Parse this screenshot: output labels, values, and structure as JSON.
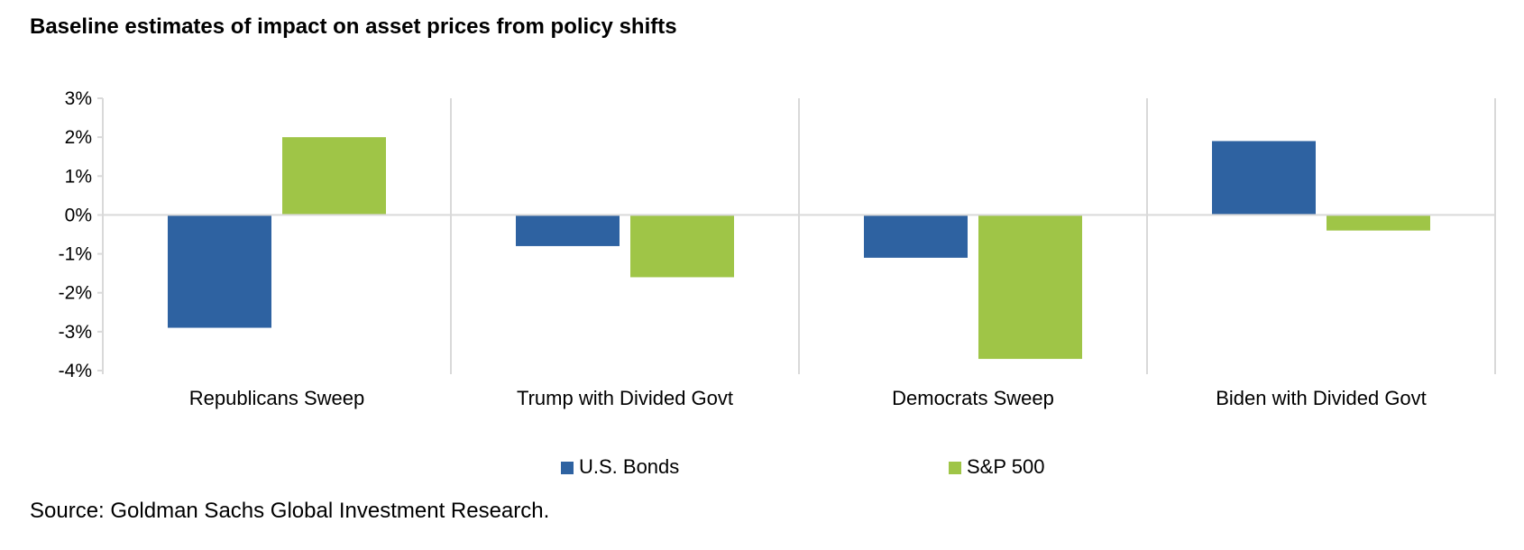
{
  "chart_data": {
    "type": "bar",
    "title": "Baseline estimates of impact on asset prices from policy shifts",
    "categories": [
      "Republicans Sweep",
      "Trump with Divided Govt",
      "Democrats Sweep",
      "Biden with Divided Govt"
    ],
    "series": [
      {
        "name": "U.S. Bonds",
        "color": "#2e62a1",
        "values": [
          -2.9,
          -0.8,
          -1.1,
          1.9
        ]
      },
      {
        "name": "S&P 500",
        "color": "#9fc547",
        "values": [
          2.0,
          -1.6,
          -3.7,
          -0.4
        ]
      }
    ],
    "ylim": [
      -4,
      3
    ],
    "yticks": [
      3,
      2,
      1,
      0,
      -1,
      -2,
      -3,
      -4
    ],
    "ytick_labels": [
      "3%",
      "2%",
      "1%",
      "0%",
      "-1%",
      "-2%",
      "-3%",
      "-4%"
    ],
    "xlabel": "",
    "ylabel": "",
    "legend_position": "bottom",
    "grid": "vertical category separators",
    "source": "Source: Goldman Sachs Global Investment Research."
  }
}
